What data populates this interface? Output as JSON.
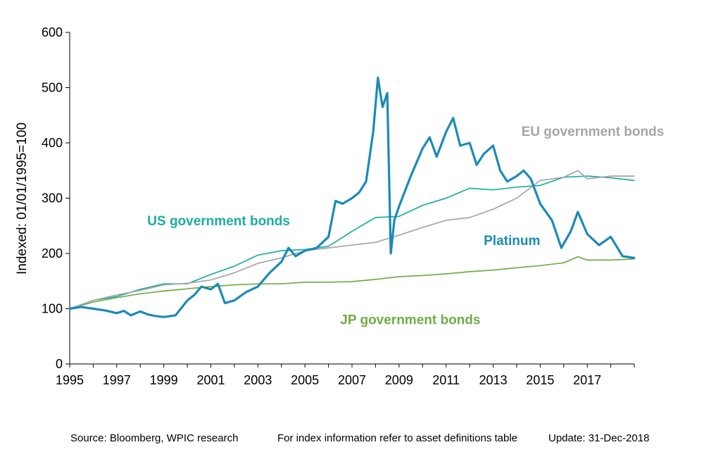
{
  "chart_data": {
    "type": "line",
    "ylabel": "Indexed: 01/01/1995=100",
    "xlabel": "",
    "ylim": [
      0,
      600
    ],
    "xlim": [
      1995,
      2019
    ],
    "yticks": [
      0,
      100,
      200,
      300,
      400,
      500,
      600
    ],
    "xticks": [
      1995,
      1997,
      1999,
      2001,
      2003,
      2005,
      2007,
      2009,
      2011,
      2013,
      2015,
      2017
    ],
    "grid": false,
    "series": [
      {
        "name": "JP government bonds",
        "color": "#70ad47",
        "label_at": [
          2006.5,
          72
        ],
        "x": [
          1995,
          1996,
          1997,
          1998,
          1999,
          2000,
          2001,
          2002,
          2003,
          2004,
          2005,
          2006,
          2007,
          2008,
          2009,
          2010,
          2011,
          2012,
          2013,
          2014,
          2015,
          2016,
          2016.6,
          2017,
          2018,
          2018.99
        ],
        "y": [
          100,
          112,
          120,
          127,
          132,
          136,
          140,
          143,
          145,
          145,
          148,
          148,
          149,
          153,
          158,
          160,
          163,
          167,
          170,
          174,
          178,
          183,
          194,
          188,
          188,
          190
        ]
      },
      {
        "name": "US government bonds",
        "color": "#1cada3",
        "label_at": [
          1998.3,
          251
        ],
        "x": [
          1995,
          1996,
          1997,
          1998,
          1999,
          2000,
          2001,
          2002,
          2003,
          2004,
          2005,
          2006,
          2007,
          2008,
          2009,
          2010,
          2011,
          2012,
          2013,
          2014,
          2015,
          2016,
          2017,
          2018,
          2018.99
        ],
        "y": [
          100,
          115,
          122,
          135,
          145,
          145,
          162,
          177,
          197,
          205,
          207,
          213,
          240,
          265,
          267,
          287,
          300,
          318,
          315,
          320,
          323,
          338,
          340,
          337,
          332
        ]
      },
      {
        "name": "EU government bonds",
        "color": "#a6a6a6",
        "label_at": [
          2014.2,
          413
        ],
        "x": [
          1995,
          1996,
          1997,
          1998,
          1999,
          2000,
          2001,
          2002,
          2003,
          2004,
          2005,
          2006,
          2007,
          2008,
          2009,
          2010,
          2011,
          2012,
          2013,
          2014,
          2015,
          2016,
          2016.6,
          2017,
          2018,
          2018.99
        ],
        "y": [
          100,
          115,
          125,
          133,
          143,
          146,
          152,
          165,
          182,
          192,
          205,
          210,
          215,
          220,
          233,
          247,
          260,
          265,
          280,
          300,
          332,
          338,
          350,
          335,
          340,
          340
        ]
      },
      {
        "name": "Platinum",
        "color": "#1b8ab9",
        "label_at": [
          2012.6,
          215
        ],
        "x": [
          1995,
          1995.5,
          1996,
          1996.5,
          1997,
          1997.3,
          1997.6,
          1998,
          1998.3,
          1998.6,
          1999,
          1999.5,
          2000,
          2000.3,
          2000.6,
          2001,
          2001.3,
          2001.6,
          2002,
          2002.5,
          2003,
          2003.5,
          2004,
          2004.3,
          2004.6,
          2005,
          2005.5,
          2006,
          2006.3,
          2006.6,
          2007,
          2007.3,
          2007.6,
          2007.9,
          2008.1,
          2008.3,
          2008.5,
          2008.65,
          2008.8,
          2009,
          2009.5,
          2010,
          2010.3,
          2010.6,
          2011,
          2011.3,
          2011.6,
          2012,
          2012.3,
          2012.6,
          2013,
          2013.3,
          2013.6,
          2014,
          2014.3,
          2014.6,
          2015,
          2015.5,
          2015.9,
          2016.3,
          2016.6,
          2017,
          2017.5,
          2018,
          2018.5,
          2018.99
        ],
        "y": [
          100,
          103,
          100,
          97,
          92,
          96,
          88,
          95,
          90,
          87,
          85,
          88,
          115,
          125,
          140,
          135,
          145,
          110,
          115,
          130,
          140,
          165,
          185,
          210,
          195,
          205,
          210,
          230,
          295,
          290,
          300,
          310,
          330,
          420,
          518,
          465,
          490,
          200,
          260,
          285,
          340,
          390,
          410,
          375,
          420,
          445,
          395,
          400,
          360,
          380,
          395,
          350,
          330,
          340,
          350,
          335,
          290,
          260,
          210,
          240,
          275,
          235,
          215,
          230,
          195,
          192
        ]
      }
    ]
  },
  "footer": {
    "source": "Source: Bloomberg, WPIC research",
    "info": "For index information refer to asset definitions table",
    "update": "Update: 31-Dec-2018"
  }
}
